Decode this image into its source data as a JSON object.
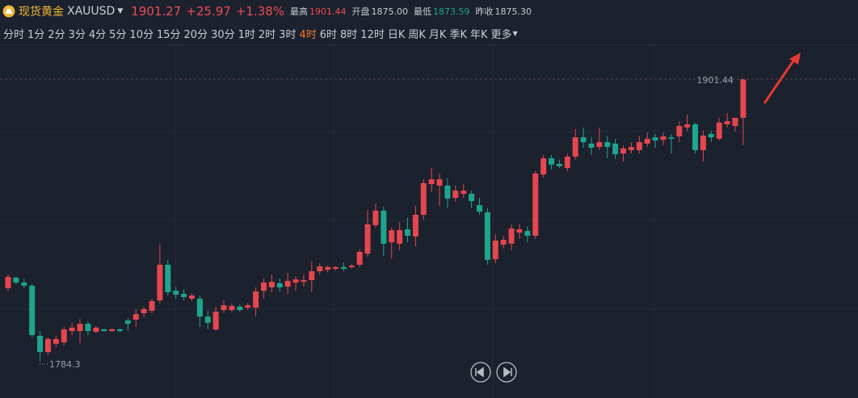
{
  "header": {
    "name": "现货黄金",
    "symbol": "XAUUSD",
    "price": "1901.27",
    "change": "+25.97",
    "change_pct": "+1.38%",
    "stats": [
      {
        "label": "最高",
        "value": "1901.44"
      },
      {
        "label": "开盘",
        "value": "1875.00"
      },
      {
        "label": "最低",
        "value": "1873.59"
      },
      {
        "label": "昨收",
        "value": "1875.30"
      }
    ]
  },
  "toolbar": {
    "periods": [
      "分时",
      "1分",
      "2分",
      "3分",
      "4分",
      "5分",
      "10分",
      "15分",
      "20分",
      "30分",
      "1时",
      "2时",
      "3时",
      "4时",
      "6时",
      "8时",
      "12时",
      "日K",
      "周K",
      "月K",
      "季K",
      "年K"
    ],
    "active": "4时",
    "more": "更多"
  },
  "chart_data": {
    "type": "candlestick",
    "up_color": "#e5474f",
    "down_color": "#1fa58d",
    "ylim": [
      1769.23,
      1915.83
    ],
    "high_label": 1901.44,
    "low_label": 1784.3,
    "ohlc": [
      [
        1814.8,
        1820.4,
        1813.7,
        1819.4
      ],
      [
        1819.1,
        1819.7,
        1816.4,
        1817.1
      ],
      [
        1817.1,
        1818.8,
        1814.8,
        1815.8
      ],
      [
        1815.8,
        1816.4,
        1794.3,
        1795.3
      ],
      [
        1795.0,
        1797.0,
        1784.3,
        1788.3
      ],
      [
        1788.3,
        1794.3,
        1787.0,
        1793.7
      ],
      [
        1791.7,
        1795.0,
        1790.3,
        1793.7
      ],
      [
        1792.3,
        1798.7,
        1791.0,
        1797.7
      ],
      [
        1797.0,
        1800.4,
        1795.3,
        1798.4
      ],
      [
        1797.0,
        1802.0,
        1792.0,
        1800.0
      ],
      [
        1800.0,
        1801.0,
        1795.3,
        1797.0
      ],
      [
        1796.7,
        1799.0,
        1796.0,
        1798.4
      ],
      [
        1797.7,
        1798.0,
        1796.7,
        1797.0
      ],
      [
        1797.0,
        1798.0,
        1796.7,
        1797.7
      ],
      [
        1797.7,
        1798.0,
        1796.3,
        1797.0
      ],
      [
        1801.4,
        1802.4,
        1797.0,
        1800.0
      ],
      [
        1801.7,
        1806.1,
        1798.7,
        1804.0
      ],
      [
        1804.4,
        1807.1,
        1802.7,
        1806.1
      ],
      [
        1805.4,
        1810.4,
        1804.4,
        1809.4
      ],
      [
        1809.7,
        1832.8,
        1808.4,
        1824.5
      ],
      [
        1824.5,
        1826.5,
        1811.7,
        1813.1
      ],
      [
        1813.7,
        1815.4,
        1810.4,
        1812.1
      ],
      [
        1812.4,
        1814.4,
        1809.7,
        1811.1
      ],
      [
        1810.4,
        1812.7,
        1809.4,
        1811.7
      ],
      [
        1810.4,
        1811.7,
        1798.7,
        1803.0
      ],
      [
        1803.0,
        1805.4,
        1797.7,
        1800.4
      ],
      [
        1797.7,
        1807.1,
        1797.0,
        1805.0
      ],
      [
        1805.7,
        1809.7,
        1804.4,
        1807.7
      ],
      [
        1805.7,
        1808.4,
        1804.7,
        1807.4
      ],
      [
        1807.1,
        1808.1,
        1805.0,
        1805.7
      ],
      [
        1806.7,
        1808.7,
        1805.7,
        1807.7
      ],
      [
        1806.7,
        1815.1,
        1803.0,
        1813.4
      ],
      [
        1813.7,
        1818.8,
        1810.4,
        1817.1
      ],
      [
        1815.1,
        1820.4,
        1813.1,
        1817.4
      ],
      [
        1816.8,
        1818.8,
        1813.4,
        1815.1
      ],
      [
        1815.4,
        1821.1,
        1812.4,
        1817.8
      ],
      [
        1817.1,
        1819.7,
        1813.7,
        1818.4
      ],
      [
        1817.4,
        1820.4,
        1815.4,
        1818.1
      ],
      [
        1818.1,
        1825.8,
        1813.1,
        1821.8
      ],
      [
        1821.8,
        1825.1,
        1820.4,
        1823.8
      ],
      [
        1822.4,
        1824.1,
        1821.4,
        1823.5
      ],
      [
        1822.8,
        1823.8,
        1822.1,
        1823.5
      ],
      [
        1823.5,
        1825.5,
        1821.8,
        1822.8
      ],
      [
        1823.5,
        1824.8,
        1822.8,
        1824.1
      ],
      [
        1824.5,
        1830.8,
        1823.5,
        1829.8
      ],
      [
        1829.1,
        1847.2,
        1827.8,
        1841.2
      ],
      [
        1840.9,
        1849.9,
        1839.9,
        1846.9
      ],
      [
        1846.9,
        1848.6,
        1828.1,
        1833.2
      ],
      [
        1833.8,
        1839.9,
        1827.1,
        1838.8
      ],
      [
        1833.2,
        1842.2,
        1830.5,
        1838.8
      ],
      [
        1839.2,
        1843.9,
        1833.8,
        1836.5
      ],
      [
        1836.2,
        1848.9,
        1832.2,
        1845.2
      ],
      [
        1845.2,
        1859.9,
        1843.2,
        1858.3
      ],
      [
        1857.9,
        1864.6,
        1854.6,
        1859.9
      ],
      [
        1857.3,
        1862.3,
        1848.9,
        1859.9
      ],
      [
        1857.3,
        1860.3,
        1847.9,
        1851.9
      ],
      [
        1852.2,
        1857.3,
        1850.6,
        1855.2
      ],
      [
        1853.9,
        1857.9,
        1852.2,
        1855.2
      ],
      [
        1853.9,
        1855.2,
        1847.9,
        1850.9
      ],
      [
        1849.2,
        1852.2,
        1845.2,
        1846.5
      ],
      [
        1846.2,
        1847.9,
        1824.5,
        1826.5
      ],
      [
        1826.8,
        1837.2,
        1825.1,
        1834.5
      ],
      [
        1832.8,
        1836.5,
        1831.2,
        1834.8
      ],
      [
        1833.2,
        1841.2,
        1830.5,
        1839.5
      ],
      [
        1837.8,
        1841.2,
        1835.2,
        1839.2
      ],
      [
        1838.5,
        1840.5,
        1833.8,
        1836.5
      ],
      [
        1836.5,
        1863.3,
        1835.2,
        1862.3
      ],
      [
        1861.9,
        1870.0,
        1860.6,
        1868.6
      ],
      [
        1868.6,
        1870.0,
        1864.0,
        1866.0
      ],
      [
        1866.3,
        1868.0,
        1864.6,
        1865.3
      ],
      [
        1864.6,
        1870.6,
        1863.3,
        1869.3
      ],
      [
        1869.3,
        1880.7,
        1868.0,
        1877.3
      ],
      [
        1877.3,
        1881.4,
        1873.0,
        1875.3
      ],
      [
        1874.7,
        1877.3,
        1870.0,
        1873.0
      ],
      [
        1873.3,
        1881.4,
        1872.0,
        1875.3
      ],
      [
        1875.3,
        1878.0,
        1868.6,
        1873.3
      ],
      [
        1874.7,
        1876.7,
        1868.3,
        1870.3
      ],
      [
        1870.6,
        1874.0,
        1867.3,
        1872.7
      ],
      [
        1872.0,
        1875.3,
        1870.6,
        1873.3
      ],
      [
        1872.0,
        1878.0,
        1870.6,
        1875.3
      ],
      [
        1874.7,
        1879.3,
        1873.3,
        1876.7
      ],
      [
        1877.3,
        1878.7,
        1873.0,
        1876.0
      ],
      [
        1876.3,
        1879.3,
        1874.0,
        1877.7
      ],
      [
        1877.3,
        1878.7,
        1870.6,
        1876.7
      ],
      [
        1877.7,
        1884.0,
        1875.3,
        1882.0
      ],
      [
        1881.4,
        1886.7,
        1880.0,
        1882.7
      ],
      [
        1882.7,
        1883.4,
        1870.6,
        1872.0
      ],
      [
        1872.0,
        1880.0,
        1867.3,
        1878.0
      ],
      [
        1878.7,
        1880.0,
        1875.3,
        1877.3
      ],
      [
        1876.7,
        1885.4,
        1876.0,
        1883.4
      ],
      [
        1882.7,
        1887.4,
        1881.4,
        1884.0
      ],
      [
        1882.0,
        1885.0,
        1879.7,
        1885.4
      ],
      [
        1885.4,
        1901.44,
        1874.0,
        1901.27
      ]
    ]
  }
}
